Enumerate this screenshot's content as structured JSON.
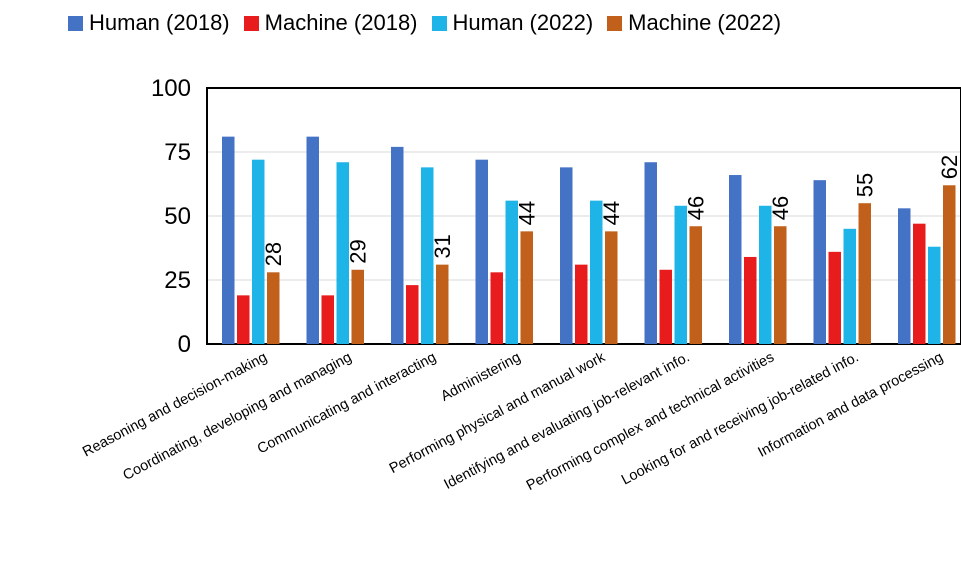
{
  "chart_data": {
    "type": "bar",
    "title": "",
    "xlabel": "",
    "ylabel": "",
    "ylim": [
      0,
      100
    ],
    "yticks": [
      "0",
      "25",
      "50",
      "75",
      "100"
    ],
    "legend_position": "top",
    "grid": true,
    "categories": [
      "Reasoning and decision-making",
      "Coordinating, developing and managing",
      "Communicating and interacting",
      "Administering",
      "Performing physical and manual work",
      "Identifying and evaluating job-relevant info.",
      "Performing complex and technical activities",
      "Looking for and receiving job-related info.",
      "Information and data processing"
    ],
    "series": [
      {
        "name": "Human (2018)",
        "color": "#4472C4",
        "values": [
          81,
          81,
          77,
          72,
          69,
          71,
          66,
          64,
          53
        ],
        "labels": [
          null,
          null,
          null,
          null,
          null,
          null,
          null,
          null,
          null
        ]
      },
      {
        "name": "Machine (2018)",
        "color": "#E81C1C",
        "values": [
          19,
          19,
          23,
          28,
          31,
          29,
          34,
          36,
          47
        ],
        "labels": [
          null,
          null,
          null,
          null,
          null,
          null,
          null,
          null,
          null
        ]
      },
      {
        "name": "Human (2022)",
        "color": "#1FB4E8",
        "values": [
          72,
          71,
          69,
          56,
          56,
          54,
          54,
          45,
          38
        ],
        "labels": [
          null,
          null,
          null,
          null,
          null,
          null,
          null,
          null,
          null
        ]
      },
      {
        "name": "Machine (2022)",
        "color": "#C0601A",
        "values": [
          28,
          29,
          31,
          44,
          44,
          46,
          46,
          55,
          62
        ],
        "labels": [
          "28",
          "29",
          "31",
          "44",
          "44",
          "46",
          "46",
          "55",
          "62"
        ]
      }
    ]
  }
}
